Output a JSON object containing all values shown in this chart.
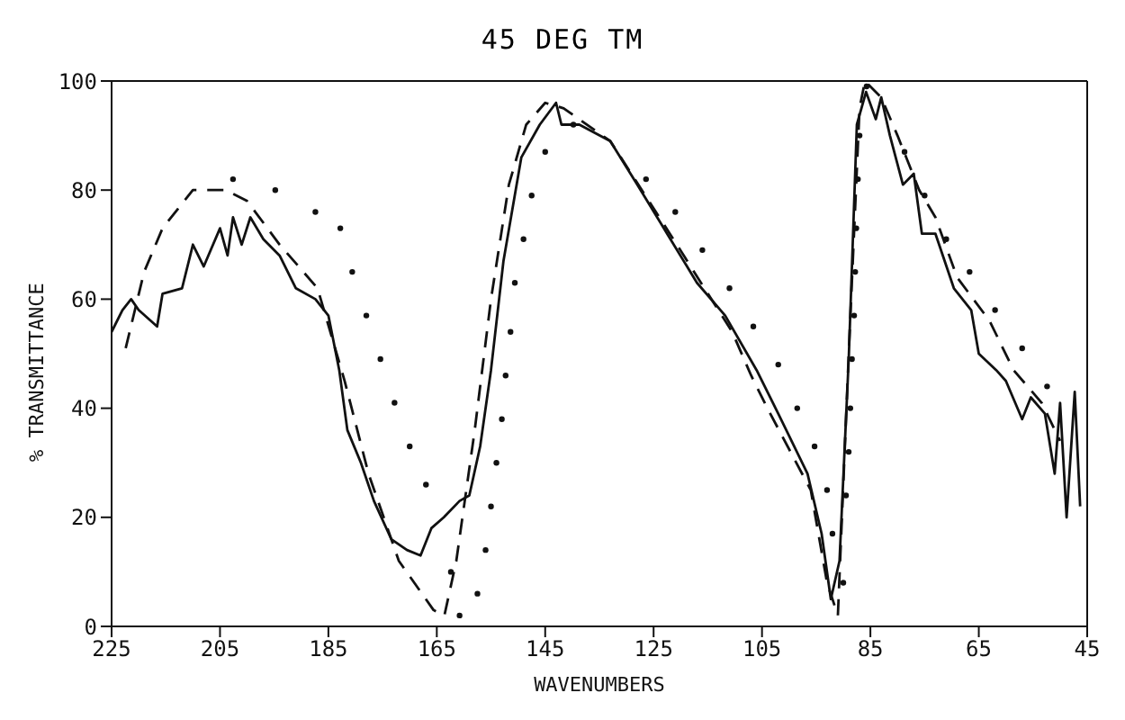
{
  "chart_data": {
    "type": "line",
    "title": "45 DEG TM",
    "xlabel": "WAVENUMBERS",
    "ylabel": "% TRANSMITTANCE",
    "xlim": [
      225,
      45
    ],
    "ylim": [
      0,
      100
    ],
    "xticks": [
      225,
      205,
      185,
      165,
      145,
      125,
      105,
      85,
      65,
      45
    ],
    "yticks": [
      0,
      20,
      40,
      60,
      80,
      100
    ],
    "grid": false,
    "series": [
      {
        "color": "#111111",
        "line_style": "solid",
        "marker": "none",
        "x": [
          225,
          223,
          221.4,
          220,
          216.6,
          215.6,
          212,
          210,
          208,
          205,
          203.6,
          202.6,
          201,
          199.4,
          197,
          194,
          191,
          187.4,
          185,
          183,
          181.5,
          179,
          176.6,
          173.4,
          170.5,
          168,
          166,
          163.7,
          160.8,
          159,
          157,
          155,
          152.7,
          149.4,
          146,
          143,
          142,
          138.7,
          133,
          128,
          122.5,
          117,
          111.8,
          106,
          102,
          96.6,
          94,
          92.3,
          90.7,
          89,
          87.5,
          85.8,
          84,
          83,
          81.4,
          79,
          77,
          75.5,
          73,
          69.6,
          66.4,
          65,
          61.8,
          60,
          57,
          55.4,
          52.8,
          51,
          50,
          48.8,
          47.3,
          46.3
        ],
        "values": [
          54,
          58,
          60,
          58,
          55,
          61,
          62,
          70,
          66,
          73,
          68,
          75,
          70,
          75,
          71,
          68,
          62,
          60,
          57,
          47,
          36,
          30,
          23,
          16,
          14,
          13,
          18,
          20,
          23,
          24,
          33,
          47,
          67,
          86,
          92,
          96,
          92,
          92,
          89,
          81,
          72,
          63,
          57,
          47,
          39,
          28,
          17,
          5,
          12,
          49,
          92,
          98,
          93,
          97,
          90,
          81,
          83,
          72,
          72,
          62,
          58,
          50,
          47,
          45,
          38,
          42,
          39,
          28,
          41,
          20,
          43,
          22
        ]
      },
      {
        "type": "line",
        "color": "#111111",
        "line_style": "dashed",
        "marker": "none",
        "x": [
          222.4,
          219,
          215.6,
          210,
          204,
          200,
          194,
          187,
          182,
          177.6,
          172,
          165.6,
          163.6,
          161.4,
          158,
          155,
          151.7,
          148.5,
          145,
          141.6,
          133,
          122,
          110.5,
          107,
          104,
          96,
          93,
          91,
          89,
          87,
          86,
          83,
          80,
          76,
          73,
          69,
          63,
          58.6,
          53.4,
          50
        ],
        "values": [
          51,
          65,
          73,
          80,
          80,
          78,
          70,
          62,
          45,
          28,
          12,
          3,
          2,
          12,
          36,
          60,
          81,
          92,
          96,
          95,
          89,
          72,
          54,
          46,
          40,
          25,
          8,
          2,
          50,
          95,
          100,
          97,
          90,
          80,
          75,
          64,
          56,
          47,
          41,
          34
        ]
      },
      {
        "type": "scatter",
        "color": "#111111",
        "marker": "circle",
        "x": [
          202.6,
          194.8,
          187.4,
          182.8,
          180.6,
          178,
          175.4,
          172.8,
          170,
          167,
          162.4,
          160.8,
          157.5,
          156,
          155,
          154,
          153,
          152.3,
          151.4,
          150.6,
          149,
          147.5,
          145,
          139.8,
          126.4,
          121,
          116,
          111,
          106.6,
          102,
          98.5,
          95.3,
          93,
          92,
          90,
          89.5,
          89,
          88.7,
          88.4,
          88,
          87.8,
          87.6,
          87.3,
          87,
          85.7,
          78.7,
          75,
          71,
          66.7,
          62,
          57,
          52.4
        ],
        "values": [
          82,
          80,
          76,
          73,
          65,
          57,
          49,
          41,
          33,
          26,
          10,
          2,
          6,
          14,
          22,
          30,
          38,
          46,
          54,
          63,
          71,
          79,
          87,
          92,
          82,
          76,
          69,
          62,
          55,
          48,
          40,
          33,
          25,
          17,
          8,
          24,
          32,
          40,
          49,
          57,
          65,
          73,
          82,
          90,
          99,
          87,
          79,
          71,
          65,
          58,
          51,
          44
        ]
      }
    ]
  }
}
